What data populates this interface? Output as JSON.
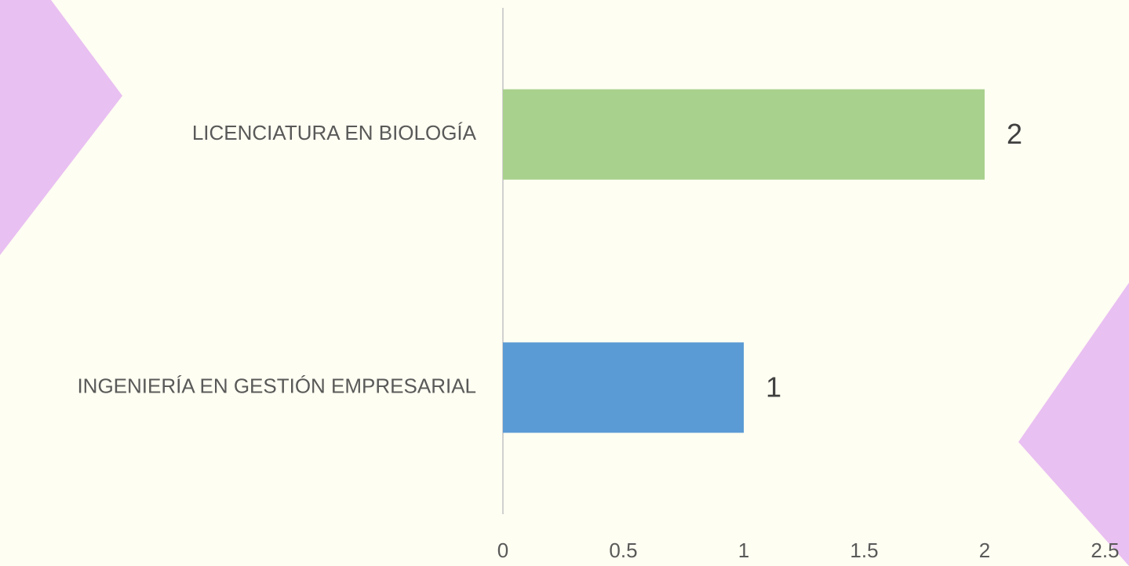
{
  "chart_data": {
    "type": "bar",
    "orientation": "horizontal",
    "categories": [
      "LICENCIATURA EN BIOLOGÍA",
      "INGENIERÍA EN GESTIÓN EMPRESARIAL"
    ],
    "values": [
      2,
      1
    ],
    "colors": [
      "#a9d18e",
      "#5b9bd5"
    ],
    "xlim": [
      0,
      2.5
    ],
    "xticks": [
      0,
      0.5,
      1,
      1.5,
      2,
      2.5
    ],
    "grid": false
  }
}
